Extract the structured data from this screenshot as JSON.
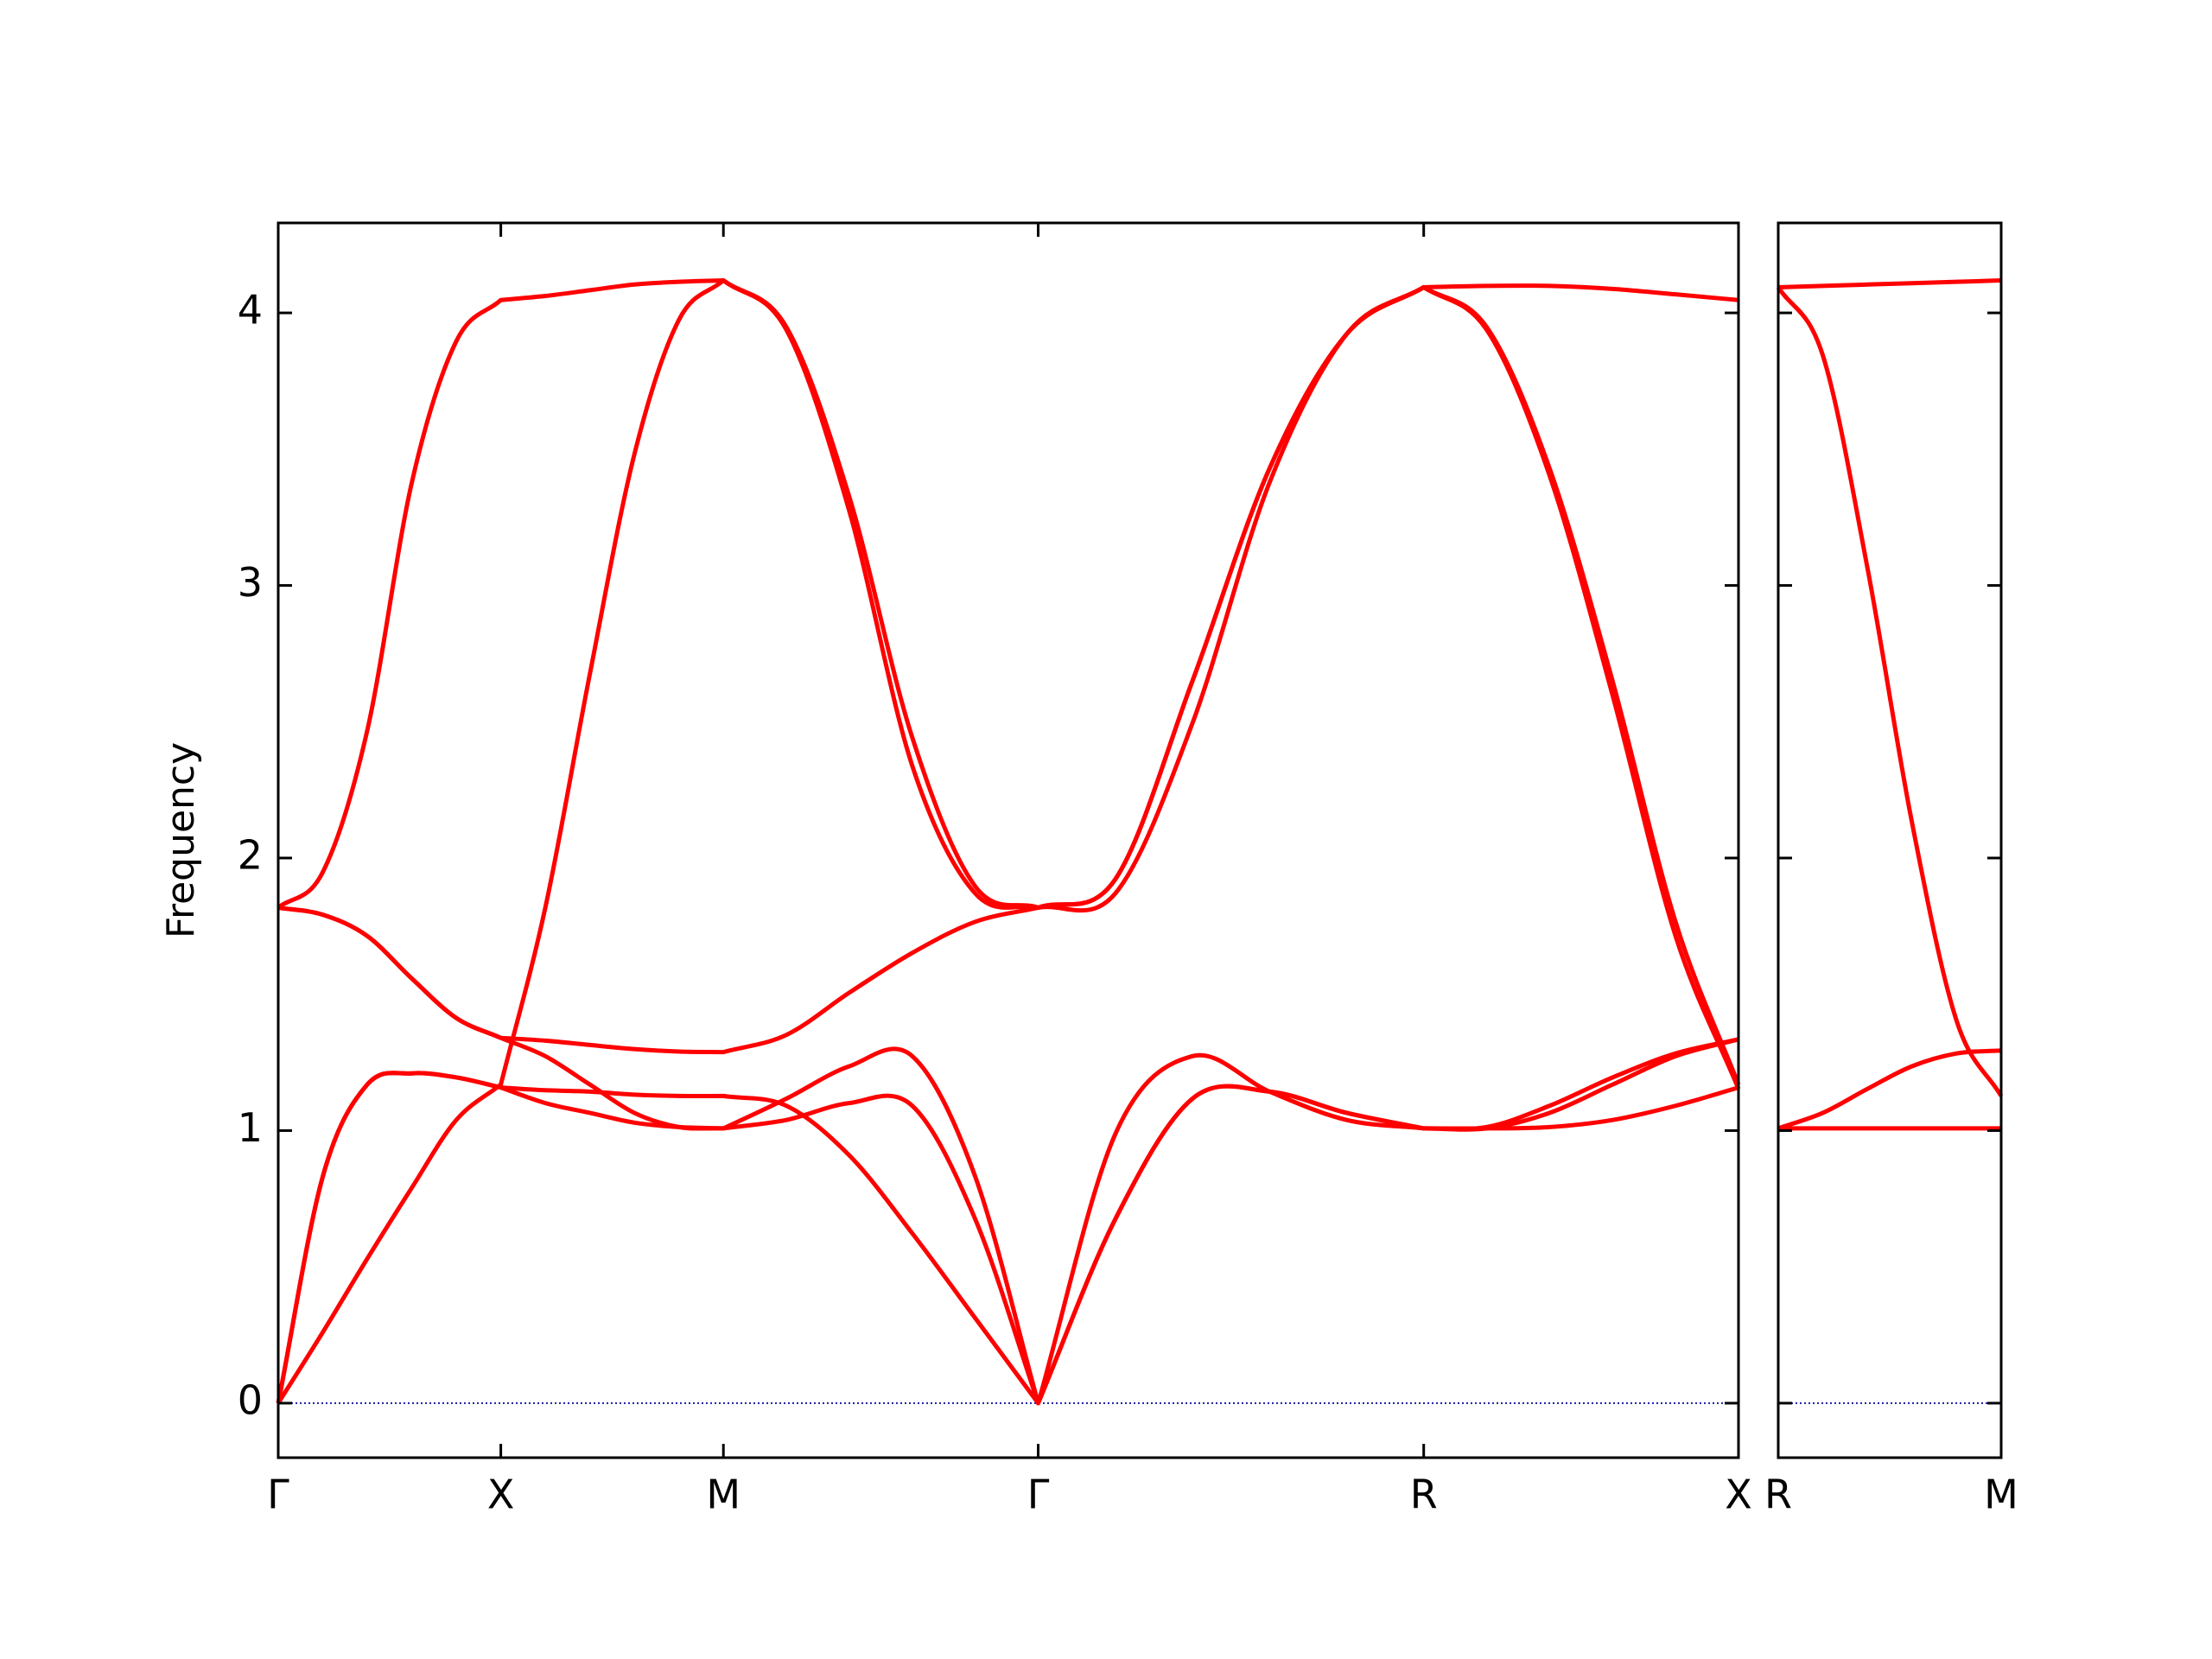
{
  "chart_data": [
    {
      "type": "line",
      "ylabel": "Frequency",
      "x": [
        0,
        0.1,
        0.2,
        0.3,
        0.4,
        0.5,
        0.6,
        0.7,
        0.8,
        0.9,
        1.0,
        1.1414,
        1.2828,
        1.4243,
        1.5657,
        1.7071,
        1.8803,
        2.0535,
        2.2267,
        2.3999,
        2.5731,
        2.7145,
        2.8559,
        2.9974,
        3.1388,
        3.2802
      ],
      "xlim": [
        0,
        3.2802
      ],
      "xticks": [
        {
          "value": 0,
          "label": "Γ"
        },
        {
          "value": 0.5,
          "label": "X"
        },
        {
          "value": 1.0,
          "label": "M"
        },
        {
          "value": 1.7071,
          "label": "Γ"
        },
        {
          "value": 2.5731,
          "label": "R"
        },
        {
          "value": 3.2802,
          "label": "X"
        }
      ],
      "ylim": [
        -0.2,
        4.33
      ],
      "yticks": [
        0,
        1,
        2,
        3,
        4
      ],
      "ytick_labels": true,
      "hlines": [
        {
          "y": 0,
          "color": "#1a1aa6"
        }
      ],
      "series": [
        {
          "color": "#ff0000",
          "values": [
            1.818,
            1.948,
            2.468,
            3.377,
            3.896,
            4.047,
            4.062,
            4.083,
            4.104,
            4.114,
            4.119,
            3.948,
            3.325,
            2.442,
            1.896,
            1.818,
            1.922,
            2.649,
            3.429,
            3.922,
            4.094,
            4.099,
            4.099,
            4.088,
            4.068,
            4.047
          ]
        },
        {
          "color": "#ff0000",
          "values": [
            1.818,
            1.792,
            1.714,
            1.558,
            1.413,
            1.34,
            1.33,
            1.314,
            1.299,
            1.29,
            1.288,
            1.351,
            1.506,
            1.652,
            1.766,
            1.818,
            1.922,
            2.649,
            3.429,
            3.922,
            4.094,
            3.948,
            3.429,
            2.649,
            1.766,
            1.169
          ]
        },
        {
          "color": "#ff0000",
          "values": [
            1.818,
            1.792,
            1.714,
            1.558,
            1.413,
            1.34,
            1.273,
            1.169,
            1.065,
            1.013,
            1.008,
            1.117,
            1.236,
            1.273,
            0.831,
            0,
            0.987,
            1.273,
            1.143,
            1.039,
            1.008,
            1.013,
            1.091,
            1.195,
            1.283,
            1.335
          ]
        },
        {
          "color": "#ff0000",
          "values": [
            0,
            0.831,
            1.169,
            1.21,
            1.195,
            1.158,
            1.148,
            1.143,
            1.132,
            1.127,
            1.127,
            1.091,
            0.909,
            0.623,
            0.312,
            0,
            0.675,
            1.117,
            1.143,
            1.065,
            1.008,
            1.008,
            1.013,
            1.039,
            1.091,
            1.158
          ]
        },
        {
          "color": "#ff0000",
          "values": [
            0,
            0.26,
            0.53,
            0.79,
            1.039,
            1.169,
            1.818,
            2.675,
            3.481,
            3.974,
            4.119,
            3.938,
            3.273,
            2.338,
            1.87,
            1.818,
            1.87,
            2.494,
            3.377,
            3.922,
            4.094,
            3.938,
            3.403,
            2.597,
            1.714,
            1.153
          ]
        },
        {
          "color": "#ff0000",
          "values": [
            0,
            0.831,
            1.169,
            1.21,
            1.195,
            1.158,
            1.101,
            1.065,
            1.029,
            1.013,
            1.008,
            1.039,
            1.101,
            1.091,
            0.675,
            0,
            0.675,
            1.117,
            1.143,
            1.065,
            1.008,
            1.008,
            1.065,
            1.169,
            1.273,
            1.335
          ]
        }
      ]
    },
    {
      "type": "line",
      "x": [
        0,
        0.1,
        0.2,
        0.3,
        0.4,
        0.5
      ],
      "xlim": [
        0,
        0.5
      ],
      "xticks": [
        {
          "value": 0,
          "label": "R"
        },
        {
          "value": 0.5,
          "label": "M"
        }
      ],
      "ylim": [
        -0.2,
        4.33
      ],
      "yticks": [
        0,
        1,
        2,
        3,
        4
      ],
      "ytick_labels": false,
      "hlines": [
        {
          "y": 0,
          "color": "#1a1aa6"
        }
      ],
      "series": [
        {
          "color": "#ff0000",
          "values": [
            4.094,
            4.099,
            4.104,
            4.109,
            4.114,
            4.119
          ]
        },
        {
          "color": "#ff0000",
          "values": [
            4.094,
            3.844,
            3.065,
            2.13,
            1.403,
            1.127
          ]
        },
        {
          "color": "#ff0000",
          "values": [
            1.008,
            1.065,
            1.153,
            1.236,
            1.283,
            1.294
          ]
        },
        {
          "color": "#ff0000",
          "values": [
            1.008,
            1.008,
            1.008,
            1.008,
            1.008,
            1.008
          ]
        }
      ]
    }
  ]
}
